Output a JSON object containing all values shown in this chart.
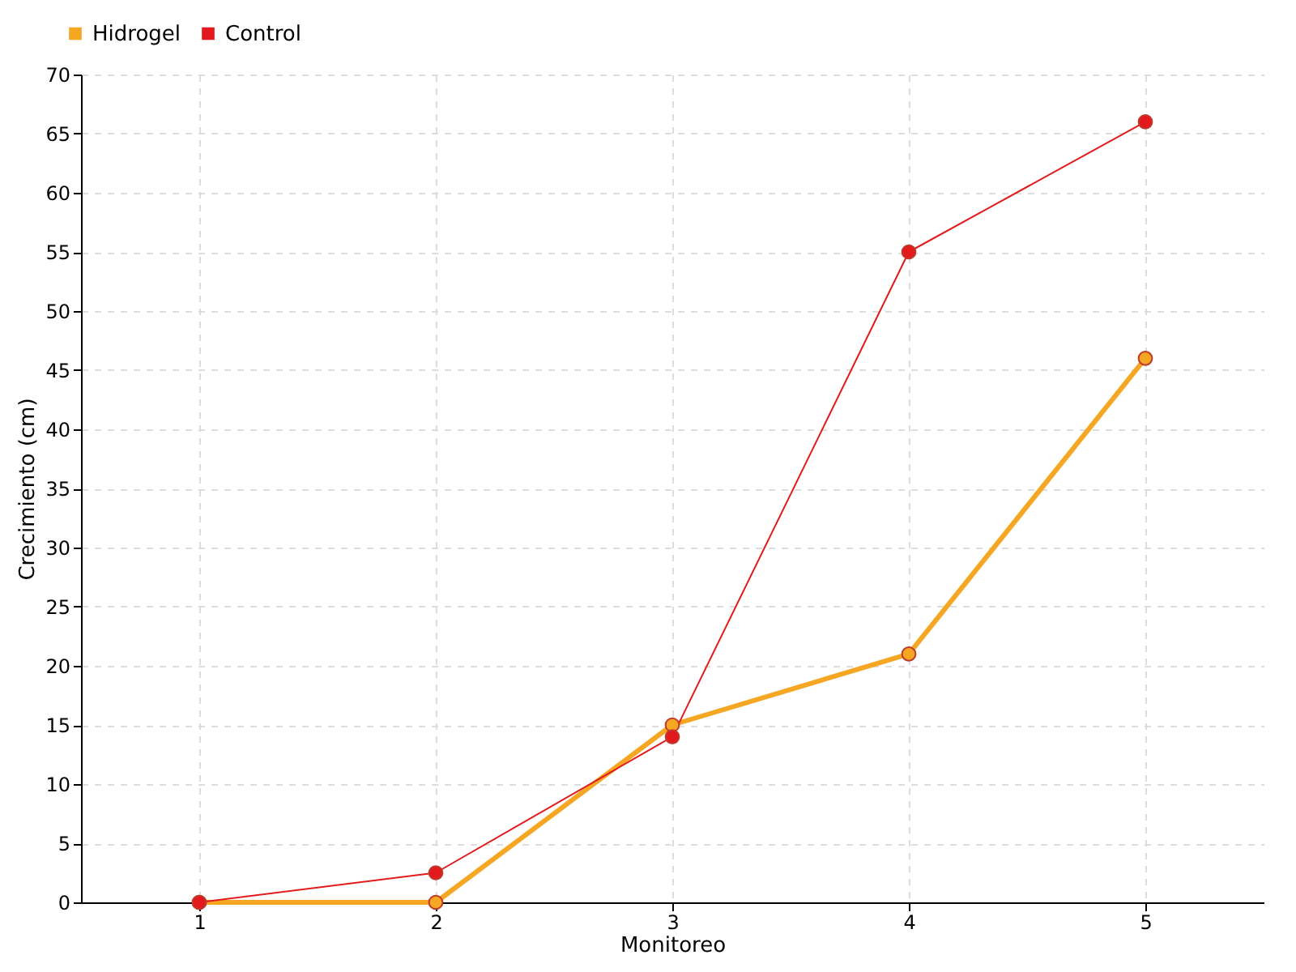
{
  "chart_data": {
    "type": "line",
    "xlabel": "Monitoreo",
    "ylabel": "Crecimiento (cm)",
    "x": [
      1,
      2,
      3,
      4,
      5
    ],
    "series": [
      {
        "name": "Hidrogel",
        "color": "#f5a623",
        "values": [
          0,
          0,
          15,
          21,
          46
        ]
      },
      {
        "name": "Control",
        "color": "#e31a1c",
        "values": [
          0,
          2.5,
          14,
          55,
          66
        ]
      }
    ],
    "xlim": [
      0.5,
      5.5
    ],
    "xticks": [
      1,
      2,
      3,
      4,
      5
    ],
    "ylim": [
      0,
      70
    ],
    "yticks": [
      0,
      5,
      10,
      15,
      20,
      25,
      30,
      35,
      40,
      45,
      50,
      55,
      60,
      65,
      70
    ],
    "grid": true,
    "legend": "top left",
    "marker": "circle",
    "line_style": "solid"
  }
}
